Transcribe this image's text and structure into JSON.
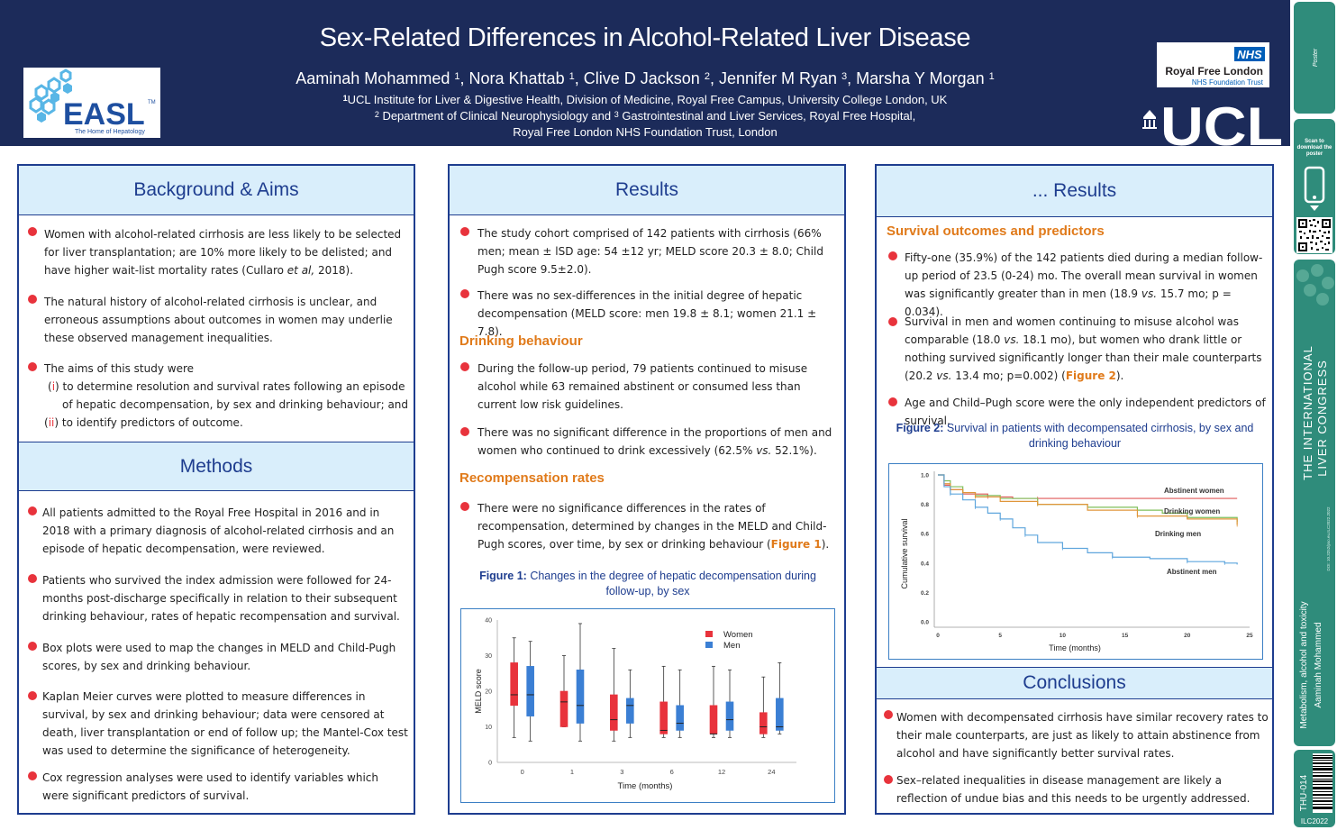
{
  "header": {
    "title": "Sex-Related Differences in Alcohol-Related Liver Disease",
    "authors": [
      {
        "name": "Aaminah Mohammed",
        "sup": "1"
      },
      {
        "name": "Nora Khattab",
        "sup": "1"
      },
      {
        "name": "Clive D Jackson",
        "sup": "2"
      },
      {
        "name": "Jennifer M Ryan",
        "sup": "3"
      },
      {
        "name": "Marsha Y Morgan",
        "sup": "1"
      }
    ],
    "affil1_sup": "1",
    "affil1": "UCL Institute for Liver & Digestive Health, Division of Medicine, Royal Free Campus, University College London, UK",
    "affil2_sup_a": "2",
    "affil2_a": " Department of Clinical Neurophysiology and ",
    "affil2_sup_b": "3",
    "affil2_b": " Gastrointestinal and Liver Services, Royal Free Hospital,",
    "affil3": "Royal Free London NHS Foundation Trust, London"
  },
  "logos": {
    "easl": "EASL",
    "easl_tm": "TM",
    "easl_tagline": "The Home of Hepatology",
    "nhs": "NHS",
    "nhs_org": "Royal Free London",
    "nhs_trust": "NHS Foundation Trust",
    "ucl": "UCL"
  },
  "sidebar": {
    "scan_text": "Scan to download the poster",
    "congress": "THE INTERNATIONAL LIVER CONGRESS",
    "congress_tm": "TM",
    "topic": "Metabolism, alcohol and toxicity",
    "author": "Aaminah Mohammed",
    "code": "THU-014",
    "event": "ILC2022",
    "doi": "DOI: 10.3252/pso.eu.ILC2022.2022"
  },
  "background": {
    "heading": "Background & Aims",
    "b1": "Women with alcohol-related cirrhosis are less likely to be selected for liver transplantation; are 10% more likely to be delisted; and have higher wait-list mortality rates (Cullaro ",
    "b1_em": "et al,",
    "b1_end": " 2018).",
    "b2": "The natural history of alcohol-related cirrhosis is unclear, and erroneous assumptions about outcomes in women may underlie these observed management inequalities.",
    "b3": "The aims of this study were",
    "aim1_num": "i",
    "aim1_a": " to determine resolution and survival rates following an episode",
    "aim1_b": "of hepatic decompensation, by sex and drinking behaviour; and",
    "aim2_num": "ii",
    "aim2": " to identify predictors of outcome."
  },
  "methods": {
    "heading": "Methods",
    "m1": "All patients admitted to the Royal Free Hospital in 2016 and in 2018 with a primary diagnosis of alcohol-related cirrhosis and an episode of hepatic decompensation, were reviewed.",
    "m2": "Patients who survived the index admission were followed for 24-months post-discharge specifically in relation to their subsequent drinking behaviour, rates of hepatic recompensation and survival.",
    "m3": "Box plots were used to map the changes in MELD and Child-Pugh scores, by sex and drinking behaviour.",
    "m4": "Kaplan Meier curves were plotted to measure differences in survival, by sex and drinking behaviour; data were censored at death, liver transplantation or end of follow up; the Mantel-Cox test was used to determine the significance of heterogeneity.",
    "m5": "Cox regression analyses were used to identify variables which were significant predictors of survival."
  },
  "results": {
    "heading": "Results",
    "r1": "The study cohort comprised of 142 patients with cirrhosis (66% men; mean ± lSD age: 54 ±12 yr; MELD score 20.3 ± 8.0; Child Pugh score 9.5±2.0).",
    "r2": "There was no sex-differences in the initial degree of hepatic decompensation (MELD score: men 19.8 ± 8.1; women 21.1 ± 7.8).",
    "drinking_heading": "Drinking behaviour",
    "d1": "During the follow-up period, 79 patients continued to misuse alcohol while 63 remained abstinent or consumed less than current low risk guidelines.",
    "d2": "There was no significant difference in the proportions of men and women who continued to drink excessively (62.5% ",
    "d2_em": "vs.",
    "d2_end": " 52.1%).",
    "recomp_heading": "Recompensation rates",
    "rc1": "There were no significance differences in the rates of recompensation, determined by changes in the MELD and Child- Pugh scores, over time, by sex or drinking behaviour (",
    "rc1_fig": "Figure 1",
    "rc1_end": ").",
    "fig1_label": "Figure 1:",
    "fig1_caption": " Changes in the degree of hepatic decompensation during follow-up, by sex"
  },
  "results2": {
    "heading": "... Results",
    "survival_heading": "Survival outcomes and predictors",
    "s1_a": "Fifty-one (35.9%) of the 142 patients died during a median follow-up period of 23.5 (0-24) mo.  The overall mean survival in women was significantly greater than in men (18.9 ",
    "s1_em": "vs.",
    "s1_end": " 15.7 mo; p = 0.034).",
    "s2_a": "Survival in men and women continuing to misuse alcohol was comparable (18.0 ",
    "s2_em1": "vs.",
    "s2_b": " 18.1 mo), but women who drank little or nothing survived significantly longer than their male counterparts (20.2 ",
    "s2_em2": "vs.",
    "s2_c": " 13.4 mo; p=0.002) (",
    "s2_fig": "Figure 2",
    "s2_end": ").",
    "s3": "Age and Child–Pugh score were the only independent predictors of survival.",
    "fig2_label": "Figure 2:",
    "fig2_caption": " Survival in patients with decompensated cirrhosis, by sex and drinking behaviour"
  },
  "conclusions": {
    "heading": "Conclusions",
    "c1": "Women with decompensated cirrhosis have similar recovery rates to their male  counterparts, are just as likely to attain abstinence from alcohol and have significantly better survival rates.",
    "c2": "Sex–related inequalities in disease management are likely a reflection of undue bias and this needs to be urgently addressed."
  },
  "chart_data": [
    {
      "type": "box",
      "title": "",
      "xlabel": "Time (months)",
      "ylabel": "MELD score",
      "ylim": [
        0,
        40
      ],
      "yticks": [
        0,
        10,
        20,
        30,
        40
      ],
      "categories": [
        "0",
        "1",
        "3",
        "6",
        "12",
        "24"
      ],
      "legend_position": "top-right",
      "series": [
        {
          "name": "Women",
          "color": "#e8333c",
          "boxes": [
            {
              "min": 7,
              "q1": 16,
              "median": 19,
              "q3": 28,
              "max": 35
            },
            {
              "min": 10,
              "q1": 10,
              "median": 17,
              "q3": 20,
              "max": 30
            },
            {
              "min": 6,
              "q1": 9,
              "median": 12,
              "q3": 19,
              "max": 32
            },
            {
              "min": 7,
              "q1": 8,
              "median": 9,
              "q3": 17,
              "max": 27
            },
            {
              "min": 7,
              "q1": 8,
              "median": 8,
              "q3": 16,
              "max": 27
            },
            {
              "min": 7,
              "q1": 8,
              "median": 10,
              "q3": 14,
              "max": 24
            }
          ]
        },
        {
          "name": "Men",
          "color": "#3b7fd4",
          "boxes": [
            {
              "min": 6,
              "q1": 13,
              "median": 19,
              "q3": 27,
              "max": 34
            },
            {
              "min": 6,
              "q1": 11,
              "median": 16,
              "q3": 26,
              "max": 39
            },
            {
              "min": 7,
              "q1": 11,
              "median": 16,
              "q3": 18,
              "max": 26
            },
            {
              "min": 7,
              "q1": 9,
              "median": 11,
              "q3": 16,
              "max": 26
            },
            {
              "min": 7,
              "q1": 9,
              "median": 12,
              "q3": 17,
              "max": 26
            },
            {
              "min": 8,
              "q1": 9,
              "median": 10,
              "q3": 18,
              "max": 28
            }
          ]
        }
      ]
    },
    {
      "type": "line",
      "title": "",
      "xlabel": "Time (months)",
      "ylabel": "Cumulative survival",
      "xlim": [
        0,
        25
      ],
      "ylim": [
        0,
        1
      ],
      "xticks": [
        0,
        5,
        10,
        15,
        20,
        25
      ],
      "yticks": [
        "0.0",
        "0.2",
        "0.4",
        "0.6",
        "0.8",
        "1.0"
      ],
      "series": [
        {
          "name": "Abstinent women",
          "color": "#e05a5a",
          "x": [
            0,
            0.5,
            1,
            2,
            4,
            6,
            8,
            24
          ],
          "y": [
            1.0,
            0.93,
            0.9,
            0.87,
            0.85,
            0.84,
            0.84,
            0.84
          ]
        },
        {
          "name": "Drinking women",
          "color": "#7fbf5a",
          "x": [
            0,
            0.5,
            1,
            2,
            3,
            5,
            8,
            12,
            16,
            18,
            20,
            23,
            24
          ],
          "y": [
            1.0,
            0.96,
            0.92,
            0.88,
            0.86,
            0.84,
            0.8,
            0.78,
            0.76,
            0.74,
            0.71,
            0.71,
            0.68
          ]
        },
        {
          "name": "Drinking men",
          "color": "#e0963a",
          "x": [
            0,
            0.5,
            1,
            2,
            3,
            5,
            8,
            12,
            16,
            20,
            24
          ],
          "y": [
            1.0,
            0.94,
            0.9,
            0.88,
            0.85,
            0.82,
            0.8,
            0.76,
            0.72,
            0.7,
            0.66
          ]
        },
        {
          "name": "Abstinent men",
          "color": "#5fa6dd",
          "x": [
            0,
            0.5,
            1,
            2,
            3,
            4,
            5,
            6,
            7,
            8,
            10,
            12,
            14,
            17,
            20,
            22,
            23,
            24
          ],
          "y": [
            1.0,
            0.92,
            0.87,
            0.83,
            0.78,
            0.74,
            0.7,
            0.64,
            0.59,
            0.54,
            0.5,
            0.47,
            0.44,
            0.43,
            0.41,
            0.41,
            0.4,
            0.39
          ]
        }
      ]
    }
  ]
}
